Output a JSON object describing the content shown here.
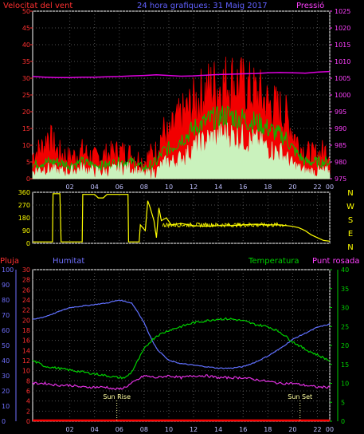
{
  "header": {
    "wind_title": "Velocitat del vent",
    "center_title": "24 hora grafiques: 31 Maig 2017",
    "pressure_title": "Pressió"
  },
  "labels": {
    "rain": "Pluja",
    "humidity": "Humitat",
    "temperature": "Temperatura",
    "dewpoint": "Punt rosada",
    "sunrise": "Sun Rise",
    "sunset": "Sun Set"
  },
  "colors": {
    "wind_gust": "#ff0000",
    "wind_avg": "#00c000",
    "wind_low": "#c8ffc8",
    "pressure": "#e000e0",
    "direction": "#ffff00",
    "humidity": "#6070ff",
    "temperature": "#00d000",
    "dewpoint": "#e030e0",
    "rain": "#ff0000",
    "frame": "#ffffff"
  },
  "chart_data": [
    {
      "type": "line",
      "name": "wind-and-pressure",
      "x_ticks": [
        "02",
        "04",
        "06",
        "08",
        "10",
        "12",
        "14",
        "16",
        "18",
        "20",
        "22",
        "00"
      ],
      "y_left_ticks": [
        0,
        5,
        10,
        15,
        20,
        25,
        30,
        35,
        40,
        45,
        50
      ],
      "y_left_range": [
        0,
        50
      ],
      "y_right_ticks": [
        975,
        980,
        985,
        990,
        995,
        1000,
        1005,
        1010,
        1015,
        1020,
        1025
      ],
      "y_right_range": [
        975,
        1025
      ],
      "x_range_hours": [
        0,
        24
      ],
      "series": [
        {
          "name": "Velocitat del vent",
          "axis": "left",
          "x": [
            0,
            1,
            1.2,
            2,
            3,
            4,
            5,
            6,
            7,
            8,
            9,
            9.5,
            10,
            10.5,
            11,
            11.5,
            12,
            12.5,
            13,
            13.5,
            14,
            14.5,
            15,
            15.5,
            16,
            16.5,
            17,
            17.5,
            18,
            18.5,
            19,
            19.5,
            20,
            20.5,
            21,
            21.5,
            22,
            22.5,
            23,
            23.5,
            24
          ],
          "values": [
            7,
            10,
            13,
            8,
            6,
            8,
            6,
            7,
            8,
            7,
            5,
            7,
            8,
            14,
            12,
            16,
            18,
            20,
            22,
            24,
            26,
            27,
            27,
            28,
            29,
            28,
            27,
            26,
            25,
            24,
            22,
            21,
            20,
            18,
            14,
            10,
            8,
            7,
            7,
            8,
            8
          ]
        },
        {
          "name": "wind average",
          "axis": "left",
          "x": [
            0,
            1,
            2,
            3,
            4,
            5,
            6,
            7,
            8,
            9,
            10,
            10.5,
            11,
            11.5,
            12,
            12.5,
            13,
            13.5,
            14,
            14.5,
            15,
            15.5,
            16,
            16.5,
            17,
            17.5,
            18,
            18.5,
            19,
            19.5,
            20,
            20.5,
            21,
            21.5,
            22,
            23,
            24
          ],
          "values": [
            4,
            5,
            5,
            4,
            5,
            4,
            4,
            5,
            5,
            3,
            5,
            8,
            9,
            10,
            12,
            13,
            15,
            16,
            17,
            18,
            18,
            19,
            19,
            18,
            18,
            17,
            17,
            16,
            15,
            14,
            13,
            12,
            9,
            7,
            5,
            5,
            5
          ]
        },
        {
          "name": "wind low",
          "axis": "left",
          "x": [
            0,
            1,
            2,
            3,
            4,
            5,
            6,
            7,
            8,
            9,
            10,
            10.5,
            11,
            11.5,
            12,
            12.5,
            13,
            13.5,
            14,
            14.5,
            15,
            15.5,
            16,
            16.5,
            17,
            17.5,
            18,
            18.5,
            19,
            19.5,
            20,
            20.5,
            21,
            22,
            23,
            24
          ],
          "values": [
            2,
            3,
            2,
            2,
            3,
            2,
            2,
            3,
            3,
            1,
            2,
            4,
            5,
            5,
            6,
            7,
            9,
            10,
            11,
            12,
            12,
            13,
            13,
            12,
            12,
            11,
            11,
            10,
            9,
            8,
            8,
            6,
            4,
            2,
            2,
            2
          ]
        },
        {
          "name": "Pressió",
          "axis": "right",
          "x": [
            0,
            1,
            2,
            3,
            4,
            5,
            6,
            7,
            8,
            9,
            10,
            11,
            12,
            13,
            14,
            15,
            16,
            17,
            18,
            19,
            20,
            21,
            22,
            23,
            24
          ],
          "values": [
            1005.5,
            1005.3,
            1005.2,
            1005.2,
            1005.3,
            1005.3,
            1005.4,
            1005.5,
            1005.7,
            1005.8,
            1006.0,
            1005.8,
            1005.6,
            1005.7,
            1005.9,
            1006.1,
            1006.2,
            1006.3,
            1006.4,
            1006.6,
            1006.7,
            1006.6,
            1006.5,
            1006.8,
            1007.0
          ]
        }
      ]
    },
    {
      "type": "line",
      "name": "wind-direction",
      "y_left_ticks": [
        0,
        90,
        180,
        270,
        360
      ],
      "y_left_range": [
        0,
        360
      ],
      "y_right_ticks": [
        "N",
        "W",
        "S",
        "E",
        "N"
      ],
      "x_range_hours": [
        0,
        24
      ],
      "series": [
        {
          "name": "direction",
          "x": [
            0,
            1.6,
            1.65,
            2.2,
            2.3,
            4,
            4.05,
            5,
            5.3,
            5.7,
            6,
            6.5,
            7,
            7.7,
            7.75,
            8.6,
            8.7,
            9.1,
            9.3,
            9.5,
            9.8,
            10,
            10.2,
            10.4,
            10.8,
            11.2,
            12,
            13,
            14,
            15,
            16,
            17,
            18,
            19,
            20,
            20.5,
            21,
            21.5,
            22,
            22.5,
            23,
            23.5,
            24
          ],
          "values": [
            10,
            10,
            350,
            350,
            10,
            10,
            345,
            345,
            320,
            320,
            345,
            345,
            345,
            345,
            10,
            10,
            130,
            90,
            300,
            250,
            160,
            40,
            250,
            160,
            180,
            130,
            140,
            125,
            120,
            125,
            125,
            130,
            135,
            130,
            130,
            125,
            120,
            110,
            90,
            60,
            40,
            20,
            15
          ]
        }
      ]
    },
    {
      "type": "line",
      "name": "temperature-humidity",
      "x_ticks": [
        "02",
        "04",
        "06",
        "08",
        "10",
        "12",
        "14",
        "16",
        "18",
        "20",
        "22",
        "00"
      ],
      "y_humidity_ticks": [
        0,
        10,
        20,
        30,
        40,
        50,
        60,
        70,
        80,
        90,
        100
      ],
      "y_humidity_range": [
        0,
        100
      ],
      "y_rain_ticks": [
        0,
        2,
        4,
        6,
        8,
        10,
        12,
        14,
        16,
        18,
        20,
        22,
        24,
        26,
        28,
        30
      ],
      "y_rain_range": [
        0,
        30
      ],
      "y_temp_ticks": [
        0,
        5,
        10,
        15,
        20,
        25,
        30,
        35,
        40
      ],
      "y_temp_range": [
        0,
        40
      ],
      "x_range_hours": [
        0,
        24
      ],
      "sunrise_hour": 6.8,
      "sunset_hour": 21.6,
      "series": [
        {
          "name": "Humitat",
          "axis": "humidity",
          "x": [
            0,
            1,
            2,
            3,
            4,
            5,
            6,
            7,
            7.5,
            8,
            8.5,
            9,
            9.5,
            10,
            10.5,
            11,
            12,
            13,
            14,
            15,
            16,
            17,
            18,
            19,
            20,
            21,
            22,
            23,
            24
          ],
          "values": [
            67,
            69,
            72,
            75,
            76,
            77,
            78,
            80,
            79,
            78,
            72,
            65,
            56,
            48,
            44,
            40,
            38,
            37,
            36,
            35,
            35,
            36,
            39,
            43,
            48,
            54,
            58,
            62,
            64
          ]
        },
        {
          "name": "Temperatura",
          "axis": "temp",
          "x": [
            0,
            1,
            2,
            3,
            4,
            5,
            6,
            7,
            7.5,
            8,
            8.5,
            9,
            9.5,
            10,
            11,
            12,
            13,
            14,
            15,
            16,
            17,
            18,
            19,
            20,
            21,
            22,
            23,
            24
          ],
          "values": [
            16,
            14.5,
            14,
            13.5,
            13,
            12.5,
            12,
            11.5,
            11.5,
            13,
            16,
            19,
            21,
            22.5,
            24,
            25,
            26,
            26.5,
            27,
            27,
            26.5,
            25.5,
            25,
            23.5,
            21,
            19,
            17.5,
            16
          ]
        },
        {
          "name": "Punt rosada",
          "axis": "temp",
          "x": [
            0,
            1,
            2,
            3,
            4,
            5,
            6,
            6.5,
            7,
            7.5,
            8,
            8.5,
            9,
            10,
            11,
            12,
            13,
            14,
            15,
            16,
            17,
            18,
            19,
            20,
            21,
            22,
            23,
            24
          ],
          "values": [
            10,
            10,
            9.5,
            9.5,
            9,
            9,
            9,
            8.5,
            8.5,
            9,
            10,
            11,
            12,
            11.5,
            12,
            11.5,
            12,
            12,
            11.5,
            11.5,
            11.5,
            11,
            10.5,
            10,
            10,
            9.5,
            9,
            9
          ]
        },
        {
          "name": "Pluja",
          "axis": "rain",
          "x": [
            0,
            24
          ],
          "values": [
            0,
            0
          ]
        }
      ]
    }
  ]
}
